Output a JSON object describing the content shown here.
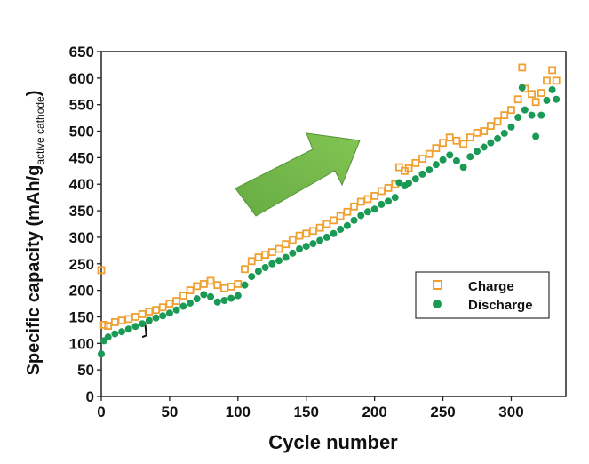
{
  "chart_data": {
    "type": "scatter",
    "xlabel": "Cycle number",
    "ylabel_main": "Specific capacity (mAh/g",
    "ylabel_sub": "active cathode",
    "ylabel_close": ")",
    "xlim": [
      0,
      340
    ],
    "ylim": [
      0,
      650
    ],
    "x_ticks": [
      0,
      50,
      100,
      150,
      200,
      250,
      300
    ],
    "y_ticks": [
      0,
      50,
      100,
      150,
      200,
      250,
      300,
      350,
      400,
      450,
      500,
      550,
      600,
      650
    ],
    "legend": {
      "position": "lower-right"
    },
    "annotation": "trend-arrow-upward",
    "series": [
      {
        "name": "Charge",
        "marker": "open-square",
        "color": "#f0a030",
        "points": [
          [
            0,
            238
          ],
          [
            2,
            135
          ],
          [
            5,
            133
          ],
          [
            10,
            140
          ],
          [
            15,
            143
          ],
          [
            20,
            146
          ],
          [
            25,
            150
          ],
          [
            30,
            155
          ],
          [
            35,
            160
          ],
          [
            40,
            163
          ],
          [
            45,
            168
          ],
          [
            50,
            175
          ],
          [
            55,
            180
          ],
          [
            60,
            190
          ],
          [
            65,
            200
          ],
          [
            70,
            208
          ],
          [
            75,
            212
          ],
          [
            80,
            218
          ],
          [
            85,
            210
          ],
          [
            90,
            204
          ],
          [
            95,
            207
          ],
          [
            100,
            212
          ],
          [
            105,
            240
          ],
          [
            110,
            255
          ],
          [
            115,
            262
          ],
          [
            120,
            267
          ],
          [
            125,
            272
          ],
          [
            130,
            278
          ],
          [
            135,
            287
          ],
          [
            140,
            295
          ],
          [
            145,
            303
          ],
          [
            150,
            307
          ],
          [
            155,
            312
          ],
          [
            160,
            318
          ],
          [
            165,
            325
          ],
          [
            170,
            332
          ],
          [
            175,
            340
          ],
          [
            180,
            348
          ],
          [
            185,
            358
          ],
          [
            190,
            367
          ],
          [
            195,
            372
          ],
          [
            200,
            378
          ],
          [
            205,
            387
          ],
          [
            210,
            393
          ],
          [
            215,
            400
          ],
          [
            218,
            432
          ],
          [
            222,
            425
          ],
          [
            225,
            430
          ],
          [
            230,
            440
          ],
          [
            235,
            448
          ],
          [
            240,
            457
          ],
          [
            245,
            468
          ],
          [
            250,
            478
          ],
          [
            255,
            488
          ],
          [
            260,
            482
          ],
          [
            265,
            476
          ],
          [
            270,
            488
          ],
          [
            275,
            497
          ],
          [
            280,
            500
          ],
          [
            285,
            510
          ],
          [
            290,
            518
          ],
          [
            295,
            530
          ],
          [
            300,
            540
          ],
          [
            305,
            560
          ],
          [
            308,
            620
          ],
          [
            310,
            580
          ],
          [
            315,
            570
          ],
          [
            318,
            555
          ],
          [
            322,
            572
          ],
          [
            326,
            595
          ],
          [
            330,
            615
          ],
          [
            333,
            595
          ]
        ]
      },
      {
        "name": "Discharge",
        "marker": "filled-circle",
        "color": "#1a9a55",
        "points": [
          [
            0,
            80
          ],
          [
            2,
            105
          ],
          [
            5,
            112
          ],
          [
            10,
            118
          ],
          [
            15,
            122
          ],
          [
            20,
            127
          ],
          [
            25,
            132
          ],
          [
            30,
            137
          ],
          [
            35,
            143
          ],
          [
            40,
            148
          ],
          [
            45,
            152
          ],
          [
            50,
            157
          ],
          [
            55,
            163
          ],
          [
            60,
            170
          ],
          [
            65,
            176
          ],
          [
            70,
            184
          ],
          [
            75,
            192
          ],
          [
            80,
            188
          ],
          [
            85,
            178
          ],
          [
            90,
            181
          ],
          [
            95,
            185
          ],
          [
            100,
            190
          ],
          [
            105,
            210
          ],
          [
            110,
            226
          ],
          [
            115,
            236
          ],
          [
            120,
            243
          ],
          [
            125,
            250
          ],
          [
            130,
            256
          ],
          [
            135,
            262
          ],
          [
            140,
            270
          ],
          [
            145,
            278
          ],
          [
            150,
            283
          ],
          [
            155,
            288
          ],
          [
            160,
            294
          ],
          [
            165,
            300
          ],
          [
            170,
            307
          ],
          [
            175,
            315
          ],
          [
            180,
            322
          ],
          [
            185,
            332
          ],
          [
            190,
            341
          ],
          [
            195,
            348
          ],
          [
            200,
            353
          ],
          [
            205,
            362
          ],
          [
            210,
            368
          ],
          [
            215,
            375
          ],
          [
            218,
            403
          ],
          [
            222,
            397
          ],
          [
            225,
            402
          ],
          [
            230,
            410
          ],
          [
            235,
            419
          ],
          [
            240,
            427
          ],
          [
            245,
            437
          ],
          [
            250,
            446
          ],
          [
            255,
            455
          ],
          [
            260,
            444
          ],
          [
            265,
            432
          ],
          [
            270,
            452
          ],
          [
            275,
            462
          ],
          [
            280,
            470
          ],
          [
            285,
            478
          ],
          [
            290,
            486
          ],
          [
            295,
            496
          ],
          [
            300,
            508
          ],
          [
            305,
            526
          ],
          [
            308,
            582
          ],
          [
            310,
            540
          ],
          [
            315,
            530
          ],
          [
            318,
            490
          ],
          [
            322,
            530
          ],
          [
            326,
            558
          ],
          [
            330,
            578
          ],
          [
            333,
            560
          ]
        ]
      }
    ]
  }
}
